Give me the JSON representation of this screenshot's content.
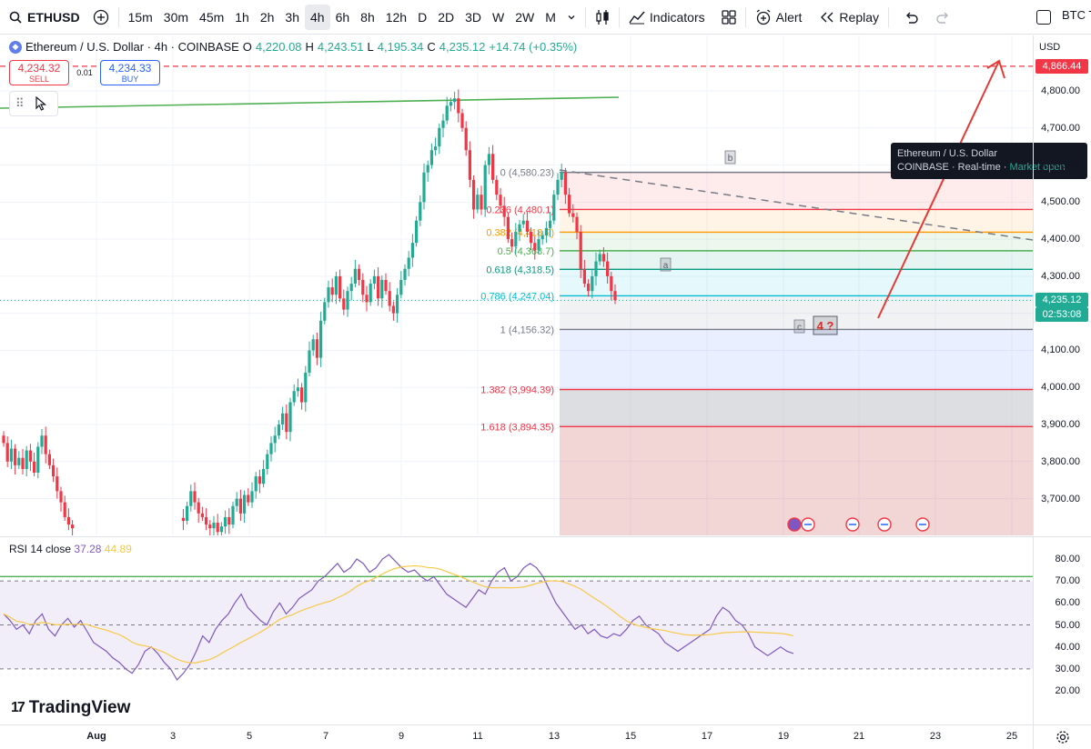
{
  "toolbar": {
    "symbol": "ETHUSD",
    "intervals": [
      "15m",
      "30m",
      "45m",
      "1h",
      "2h",
      "3h",
      "4h",
      "6h",
      "8h",
      "12h",
      "D",
      "2D",
      "3D",
      "W",
      "2W",
      "M"
    ],
    "active_interval": "4h",
    "indicators_label": "Indicators",
    "alert_label": "Alert",
    "replay_label": "Replay",
    "compare_symbol": "BTC T"
  },
  "legend": {
    "title": "Ethereum / U.S. Dollar · 4h · COINBASE",
    "open_key": "O",
    "open": "4,220.08",
    "high_key": "H",
    "high": "4,243.51",
    "low_key": "L",
    "low": "4,195.34",
    "close_key": "C",
    "close": "4,235.12",
    "change": "+14.74 (+0.35%)"
  },
  "trade": {
    "sell_price": "4,234.32",
    "sell_label": "SELL",
    "spread": "0.01",
    "buy_price": "4,234.33",
    "buy_label": "BUY"
  },
  "tooltip": {
    "line1": "Ethereum / U.S. Dollar",
    "exchange": "COINBASE",
    "feed": "Real-time",
    "status": "Market open"
  },
  "price_axis": {
    "currency": "USD",
    "ticks": [
      "4,800.00",
      "4,700.00",
      "4,600.00",
      "4,500.00",
      "4,400.00",
      "4,300.00",
      "4,200.00",
      "4,100.00",
      "4,000.00",
      "3,900.00",
      "3,800.00",
      "3,700.00"
    ],
    "tick_values": [
      4800,
      4700,
      4600,
      4500,
      4400,
      4300,
      4200,
      4100,
      4000,
      3900,
      3800,
      3700
    ],
    "target_tag": "4,866.44",
    "target_value": 4866.44,
    "last_price_tag": "4,235.12",
    "last_price_value": 4235.12,
    "countdown": "02:53:08",
    "target_color": "#f23645",
    "last_color": "#22ab94"
  },
  "fib": {
    "levels": [
      {
        "label": "0 (4,580.23)",
        "value": 4580.23,
        "color": "#787b86"
      },
      {
        "label": "0.236 (4,480.1)",
        "value": 4480.1,
        "color": "#f23645"
      },
      {
        "label": "0.382 (4,418.9)",
        "value": 4418.9,
        "color": "#ff9800"
      },
      {
        "label": "0.5 (4,368.7)",
        "value": 4368.7,
        "color": "#4caf50"
      },
      {
        "label": "0.618 (4,318.5)",
        "value": 4318.5,
        "color": "#089981"
      },
      {
        "label": "0.786 (4,247.04)",
        "value": 4247.04,
        "color": "#00bcd4"
      },
      {
        "label": "1 (4,156.32)",
        "value": 4156.32,
        "color": "#787b86"
      },
      {
        "label": "1.382 (3,994.39)",
        "value": 3994.39,
        "color": "#f23645"
      },
      {
        "label": "1.618 (3,894.35)",
        "value": 3894.35,
        "color": "#f23645"
      }
    ]
  },
  "wave_labels": {
    "a": "a",
    "b": "b",
    "c": "c",
    "four": "4 ?"
  },
  "rsi": {
    "title": "RSI 14 close",
    "value": "37.28",
    "ma_value": "44.89",
    "ticks": [
      "80.00",
      "70.00",
      "60.00",
      "50.00",
      "40.00",
      "30.00",
      "20.00"
    ],
    "tick_values": [
      80,
      70,
      60,
      50,
      40,
      30,
      20
    ],
    "line_color": "#7e57c2",
    "ma_color": "#f7c948"
  },
  "time_axis": {
    "labels": [
      "Aug",
      "3",
      "5",
      "7",
      "9",
      "11",
      "13",
      "15",
      "17",
      "19",
      "21",
      "23",
      "25"
    ]
  },
  "branding": "TradingView",
  "chart_data": {
    "type": "candlestick",
    "title": "Ethereum / U.S. Dollar · 4h · COINBASE",
    "ylim": [
      3600,
      4950
    ],
    "last_close": 4235.12,
    "segments": [
      {
        "phase": "Aug 1-2 range",
        "from": 3820,
        "to": 3620
      },
      {
        "phase": "Aug 4-13 rally",
        "from": 3640,
        "to": 4580
      },
      {
        "phase": "Aug 14 peak",
        "value": 4780
      },
      {
        "phase": "Aug 15-19 pullback",
        "from": 4700,
        "to": 4235
      }
    ]
  }
}
